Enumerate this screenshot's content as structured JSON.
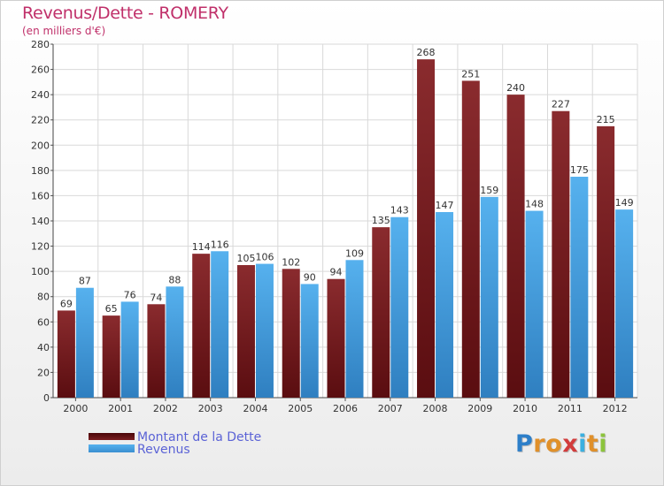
{
  "title": "Revenus/Dette - ROMERY",
  "subtitle": "(en milliers d'€)",
  "logo": {
    "letters": [
      "P",
      "r",
      "o",
      "x",
      "i",
      "t",
      "i"
    ],
    "colors": [
      "#2d7fc9",
      "#e0902a",
      "#e0902a",
      "#d23c3c",
      "#3bb0e0",
      "#e0902a",
      "#8cc43c"
    ]
  },
  "chart_data": {
    "type": "bar",
    "title": "Revenus/Dette - ROMERY",
    "ylabel": "(en milliers d'€)",
    "categories": [
      "2000",
      "2001",
      "2002",
      "2003",
      "2004",
      "2005",
      "2006",
      "2007",
      "2008",
      "2009",
      "2010",
      "2011",
      "2012"
    ],
    "series": [
      {
        "name": "Montant de la Dette",
        "color": "#7a1f22",
        "values": [
          69,
          65,
          74,
          114,
          105,
          102,
          94,
          135,
          268,
          251,
          240,
          227,
          215
        ]
      },
      {
        "name": "Revenus",
        "color": "#4aa3e2",
        "values": [
          87,
          76,
          88,
          116,
          106,
          90,
          109,
          143,
          147,
          159,
          148,
          175,
          149
        ]
      }
    ],
    "ylim": [
      0,
      280
    ],
    "yticks": [
      0,
      20,
      40,
      60,
      80,
      100,
      120,
      140,
      160,
      180,
      200,
      220,
      240,
      260,
      280
    ],
    "grid": true,
    "legend": "bottom-left"
  }
}
